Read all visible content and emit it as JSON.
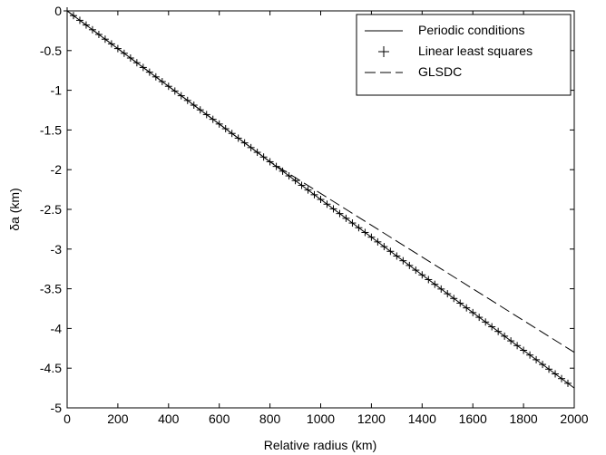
{
  "chart_data": {
    "type": "line",
    "xlabel": "Relative radius (km)",
    "ylabel": "δa (km)",
    "xlim": [
      0,
      2000
    ],
    "ylim": [
      -5,
      0
    ],
    "xticks": [
      0,
      200,
      400,
      600,
      800,
      1000,
      1200,
      1400,
      1600,
      1800,
      2000
    ],
    "yticks": [
      0,
      -0.5,
      -1,
      -1.5,
      -2,
      -2.5,
      -3,
      -3.5,
      -4,
      -4.5,
      -5
    ],
    "ytick_labels": [
      "0",
      "-0.5",
      "-1",
      "-1.5",
      "-2",
      "-2.5",
      "-3",
      "-3.5",
      "-4",
      "-4.5",
      "-5"
    ],
    "grid": false,
    "legend_position": "top-right",
    "series": [
      {
        "name": "Periodic conditions",
        "style": "solid",
        "x": [
          0,
          2000
        ],
        "y": [
          0,
          -4.75
        ]
      },
      {
        "name": "Linear least squares",
        "style": "plus-markers",
        "x": [
          0,
          25,
          50,
          75,
          100,
          125,
          150,
          175,
          200,
          225,
          250,
          275,
          300,
          325,
          350,
          375,
          400,
          425,
          450,
          475,
          500,
          525,
          550,
          575,
          600,
          625,
          650,
          675,
          700,
          725,
          750,
          775,
          800,
          825,
          850,
          875,
          900,
          925,
          950,
          975,
          1000,
          1025,
          1050,
          1075,
          1100,
          1125,
          1150,
          1175,
          1200,
          1225,
          1250,
          1275,
          1300,
          1325,
          1350,
          1375,
          1400,
          1425,
          1450,
          1475,
          1500,
          1525,
          1550,
          1575,
          1600,
          1625,
          1650,
          1675,
          1700,
          1725,
          1750,
          1775,
          1800,
          1825,
          1850,
          1875,
          1900,
          1925,
          1950,
          1975
        ],
        "slope": -0.002375
      },
      {
        "name": "GLSDC",
        "style": "dashed",
        "x": [
          0,
          800,
          2000
        ],
        "y": [
          0,
          -1.9,
          -4.3
        ]
      }
    ]
  },
  "colors": {
    "line": "#000000",
    "background": "#ffffff"
  }
}
